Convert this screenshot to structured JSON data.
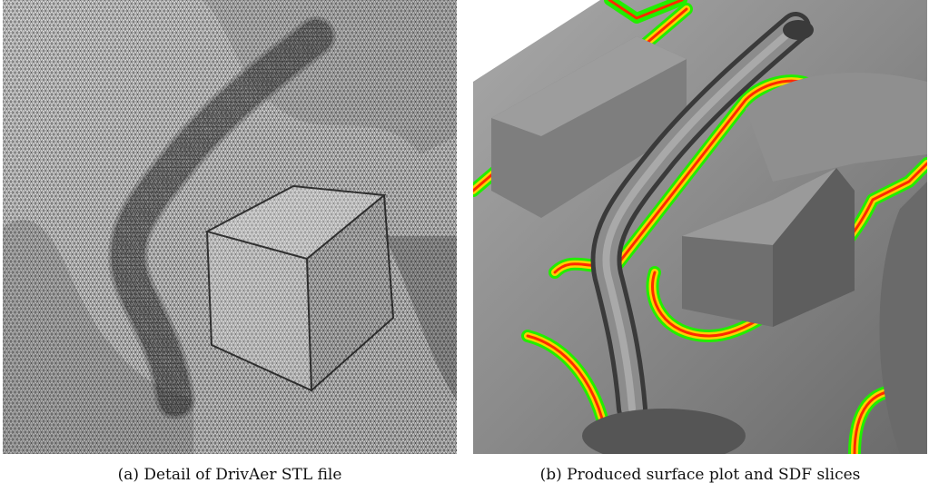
{
  "figure": {
    "panels": [
      {
        "caption": "(a) Detail of DrivAer STL file"
      },
      {
        "caption": "(b) Produced surface plot and SDF slices"
      }
    ],
    "colors": {
      "sdf_near": "#ff2a00",
      "sdf_mid": "#ffd000",
      "sdf_far": "#22ee00",
      "surface": "#8c8c8c",
      "mesh_line": "#000000"
    }
  }
}
